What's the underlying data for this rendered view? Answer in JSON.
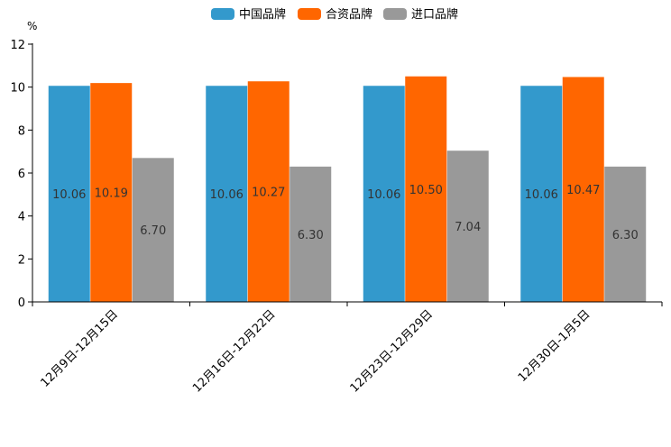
{
  "chart_data": {
    "type": "bar",
    "title": "",
    "unit": "%",
    "xlabel": "",
    "ylabel": "%",
    "ylim": [
      0,
      12
    ],
    "yticks": [
      0,
      2,
      4,
      6,
      8,
      10,
      12
    ],
    "grid": false,
    "legend_position": "top-center",
    "categories": [
      "12月9日-12月15日",
      "12月16日-12月22日",
      "12月23日-12月29日",
      "12月30日-1月5日"
    ],
    "series": [
      {
        "name": "中国品牌",
        "color": "#3399cc",
        "values": [
          10.06,
          10.06,
          10.06,
          10.06
        ],
        "labels": [
          "10.06",
          "10.06",
          "10.06",
          "10.06"
        ]
      },
      {
        "name": "合资品牌",
        "color": "#ff6600",
        "values": [
          10.19,
          10.27,
          10.5,
          10.47
        ],
        "labels": [
          "10.19",
          "10.27",
          "10.50",
          "10.47"
        ]
      },
      {
        "name": "进口品牌",
        "color": "#999999",
        "values": [
          6.7,
          6.3,
          7.04,
          6.3
        ],
        "labels": [
          "6.70",
          "6.30",
          "7.04",
          "6.30"
        ]
      }
    ]
  }
}
